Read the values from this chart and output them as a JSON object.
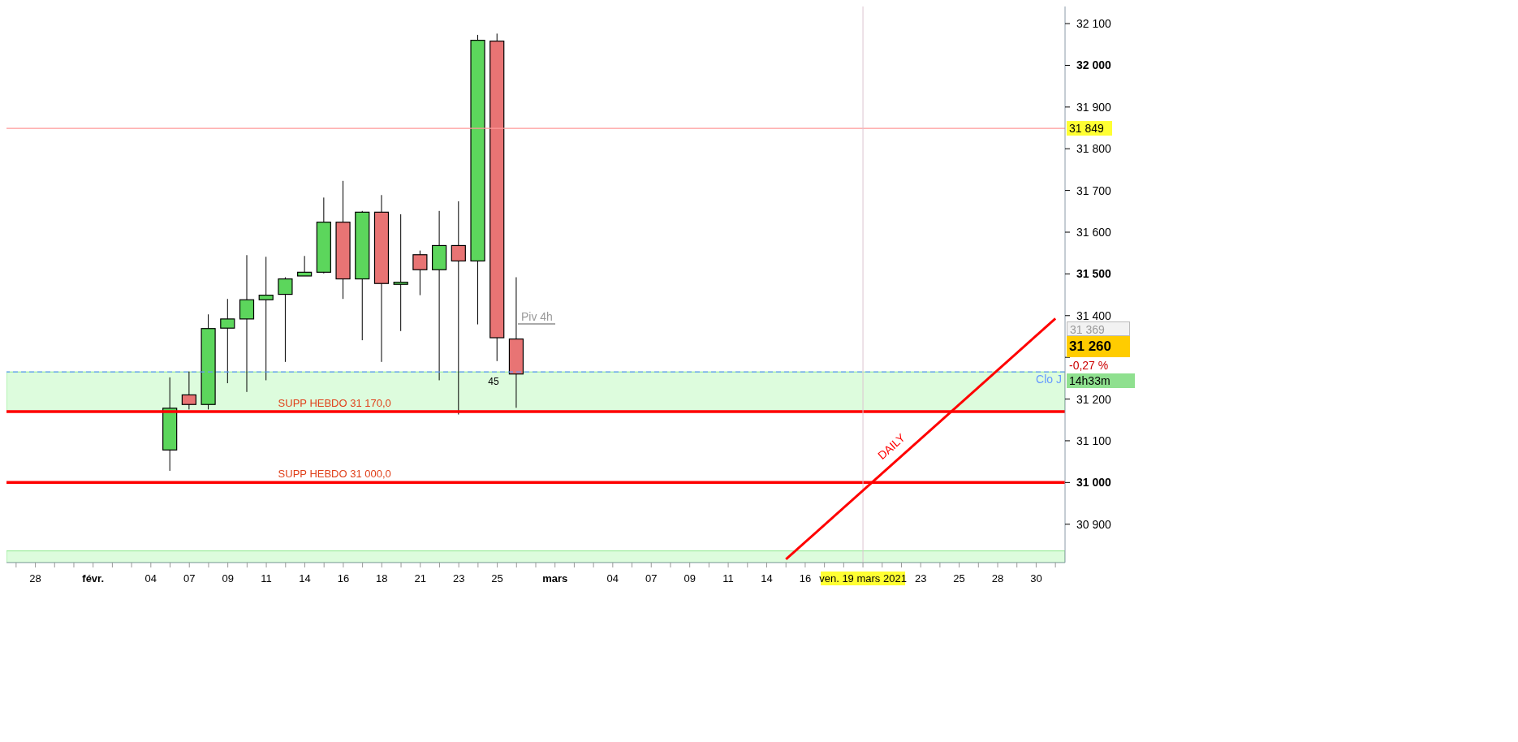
{
  "chart_data": {
    "type": "candlestick",
    "categories": [
      null,
      "28",
      null,
      null,
      "févr.",
      null,
      null,
      "04",
      null,
      "07",
      null,
      "09",
      null,
      "11",
      null,
      "14",
      null,
      "16",
      null,
      "18",
      null,
      "21",
      null,
      "23",
      null,
      "25",
      null,
      null,
      "mars",
      null,
      null,
      "04",
      null,
      "07",
      null,
      "09",
      null,
      "11",
      null,
      "14",
      null,
      "16",
      null,
      null,
      "ven. 19 mars 2021",
      null,
      null,
      "23",
      null,
      "25",
      null,
      "28",
      null,
      "30",
      null
    ],
    "ohlc": [
      null,
      null,
      null,
      null,
      null,
      null,
      null,
      null,
      [
        31078,
        31252,
        31028,
        31178
      ],
      [
        31210,
        31266,
        31175,
        31187
      ],
      [
        31187,
        31403,
        31175,
        31369
      ],
      [
        31370,
        31440,
        31238,
        31392
      ],
      [
        31392,
        31545,
        31217,
        31438
      ],
      [
        31438,
        31541,
        31245,
        31449
      ],
      [
        31451,
        31492,
        31289,
        31488
      ],
      [
        31495,
        31543,
        31495,
        31504
      ],
      [
        31504,
        31683,
        31501,
        31624
      ],
      [
        31624,
        31723,
        31440,
        31488
      ],
      [
        31488,
        31651,
        31341,
        31648
      ],
      [
        31648,
        31689,
        31289,
        31477
      ],
      [
        31475,
        31643,
        31363,
        31480
      ],
      [
        31546,
        31556,
        31449,
        31510
      ],
      [
        31510,
        31651,
        31245,
        31568
      ],
      [
        31568,
        31674,
        31163,
        31531
      ],
      [
        31531,
        32073,
        31379,
        32060
      ],
      [
        32058,
        32076,
        31291,
        31347
      ],
      [
        31344,
        31492,
        31179,
        31260
      ],
      null,
      null,
      null,
      null,
      null,
      null,
      null,
      null,
      null,
      null,
      null,
      null,
      null,
      null,
      null,
      null,
      null,
      null,
      null,
      null,
      null,
      null,
      null,
      null,
      null,
      null,
      null,
      null
    ],
    "colors": [
      null,
      null,
      null,
      null,
      null,
      null,
      null,
      null,
      "#5cd65c",
      "#e87474",
      "#5cd65c",
      "#5cd65c",
      "#5cd65c",
      "#5cd65c",
      "#5cd65c",
      "#5cd65c",
      "#5cd65c",
      "#e87474",
      "#5cd65c",
      "#e87474",
      "#5cd65c",
      "#e87474",
      "#5cd65c",
      "#e87474",
      "#5cd65c",
      "#e87474",
      "#e87474",
      null,
      null,
      null,
      null,
      null,
      null,
      null,
      null,
      null,
      null,
      null,
      null,
      null,
      null,
      null,
      null,
      null,
      null,
      null,
      null,
      null,
      null,
      null,
      null,
      null,
      null,
      null,
      null
    ],
    "series": [
      {
        "name": "DAILY",
        "type": "line",
        "color": "#ff0000",
        "values": [
          null,
          null,
          null,
          null,
          null,
          null,
          null,
          null,
          null,
          null,
          null,
          null,
          null,
          null,
          null,
          null,
          null,
          null,
          null,
          null,
          null,
          null,
          null,
          null,
          null,
          null,
          null,
          null,
          null,
          null,
          null,
          null,
          null,
          null,
          null,
          null,
          null,
          null,
          null,
          null,
          30816,
          null,
          null,
          null,
          null,
          null,
          null,
          null,
          null,
          null,
          null,
          null,
          null,
          null,
          31393
        ]
      }
    ],
    "ylim": [
      30808,
      32141
    ],
    "yticks": [
      {
        "value": 30900,
        "label": "30 900"
      },
      {
        "value": 31000,
        "label": "31 000"
      },
      {
        "value": 31100,
        "label": "31 100"
      },
      {
        "value": 31200,
        "label": "31 200"
      },
      {
        "value": 31300,
        "label": null
      },
      {
        "value": 31400,
        "label": "31 400"
      },
      {
        "value": 31500,
        "label": "31 500"
      },
      {
        "value": 31600,
        "label": "31 600"
      },
      {
        "value": 31700,
        "label": "31 700"
      },
      {
        "value": 31800,
        "label": "31 800"
      },
      {
        "value": 31900,
        "label": "31 900"
      },
      {
        "value": 32000,
        "label": "32 000"
      },
      {
        "value": 32100,
        "label": "32 100"
      }
    ],
    "ref_lines": [
      {
        "axis": "y",
        "value": 31849,
        "label": "31 849",
        "color": "#ff9999"
      },
      {
        "axis": "y",
        "value": 31170,
        "label": "SUPP HEBDO 31 170,0",
        "color": "#ff0000"
      },
      {
        "axis": "y",
        "value": 31000,
        "label": "SUPP HEBDO 31 000,0",
        "color": "#ff0000"
      },
      {
        "axis": "y",
        "value": 31265,
        "label": "Clo J",
        "color": "#6699ff",
        "line_style": "dashed"
      },
      {
        "axis": "x",
        "value": "ven. 19 mars 2021",
        "color": "#dcc4d0"
      }
    ],
    "bands": [
      {
        "axis": "y",
        "from": 31170,
        "to": 31265,
        "color": "#ddfcdd"
      },
      {
        "axis": "y",
        "from": 30808,
        "to": 30836,
        "color": "#ddfcdd"
      }
    ],
    "annotations": [
      "31 369",
      "31 260",
      "-0,27 %",
      "14h33m",
      "Piv 4h",
      "45"
    ]
  }
}
